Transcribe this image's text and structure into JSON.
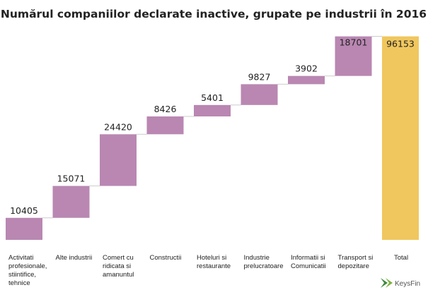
{
  "chart_data": {
    "type": "waterfall",
    "title": "Numărul companiilor declarate inactive, grupate pe industrii în 2016",
    "categories": [
      [
        "Activitati",
        "profesionale,",
        "stiintifice,",
        "tehnice"
      ],
      [
        "Alte industrii"
      ],
      [
        "Comert cu",
        "ridicata si",
        "amanuntul"
      ],
      [
        "Constructii"
      ],
      [
        "Hoteluri si",
        "restaurante"
      ],
      [
        "Industrie",
        "prelucratoare"
      ],
      [
        "Informatii si",
        "Comunicatii"
      ],
      [
        "Transport si",
        "depozitare"
      ],
      [
        "Total"
      ]
    ],
    "values": [
      10405,
      15071,
      24420,
      8426,
      5401,
      9827,
      3902,
      18701,
      96153
    ],
    "value_labels": [
      "10405",
      "15071",
      "24420",
      "8426",
      "5401",
      "9827",
      "3902",
      "18701",
      "96153"
    ],
    "total_index": 8,
    "ylim": [
      0,
      100000
    ],
    "grid": false,
    "colors": {
      "increment": "#b987b2",
      "total": "#f0c75e",
      "connector": "#cccccc",
      "total_label": "#ffffff"
    }
  },
  "brand": {
    "name": "KeysFin",
    "logo_color": "#3c8a3f"
  }
}
